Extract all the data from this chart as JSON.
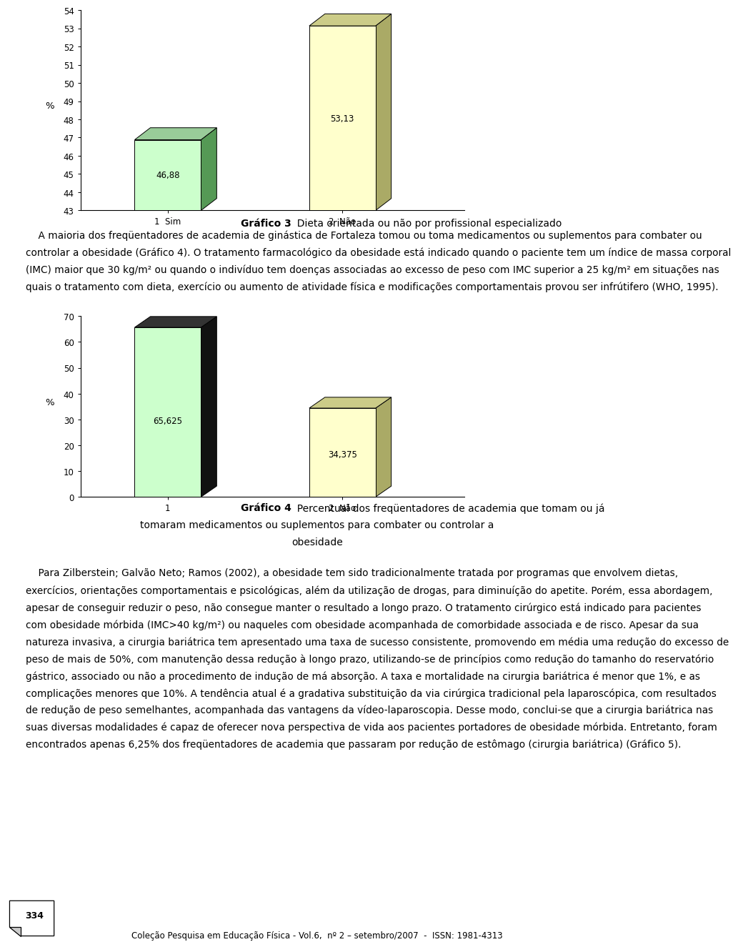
{
  "chart1": {
    "categories": [
      "1  Sim",
      "2  Não"
    ],
    "values": [
      46.88,
      53.13
    ],
    "base": 43,
    "ylim": [
      43,
      54
    ],
    "yticks": [
      43,
      44,
      45,
      46,
      47,
      48,
      49,
      50,
      51,
      52,
      53,
      54
    ],
    "ylabel": "%",
    "bar_face_colors": [
      "#ccffcc",
      "#ffffcc"
    ],
    "bar_side_colors": [
      "#559955",
      "#aaaa66"
    ],
    "bar_top_colors": [
      "#99cc99",
      "#cccc88"
    ],
    "value_labels": [
      "46,88",
      "53,13"
    ],
    "caption_bold": "Gráfico 3",
    "caption_normal": "  Dieta orientada ou não por profissional especializado"
  },
  "chart2": {
    "categories": [
      "1",
      "2  Não"
    ],
    "values": [
      65.625,
      34.375
    ],
    "base": 0,
    "ylim": [
      0,
      70
    ],
    "yticks": [
      0,
      10,
      20,
      30,
      40,
      50,
      60,
      70
    ],
    "ylabel": "%",
    "bar_face_colors": [
      "#ccffcc",
      "#ffffcc"
    ],
    "bar_side_colors": [
      "#111111",
      "#aaaa66"
    ],
    "bar_top_colors": [
      "#333333",
      "#cccc88"
    ],
    "value_labels": [
      "65,625",
      "34,375"
    ],
    "caption_bold": "Gráfico 4",
    "caption_line1": "  Percentual dos freqüentadores de academia que tomam ou já",
    "caption_line2": "tomaram medicamentos ou suplementos para combater ou controlar a",
    "caption_line3": "obesidade"
  },
  "para1_lines": [
    "    A maioria dos freqüentadores de academia de ginástica de Fortaleza tomou ou toma medicamentos ou suplementos para combater ou",
    "controlar a obesidade (Gráfico 4). O tratamento farmacológico da obesidade está indicado quando o paciente tem um índice de massa corporal",
    "(IMC) maior que 30 kg/m² ou quando o indivíduo tem doenças associadas ao excesso de peso com IMC superior a 25 kg/m² em situações nas",
    "quais o tratamento com dieta, exercício ou aumento de atividade física e modificações comportamentais provou ser infrútifero (WHO, 1995)."
  ],
  "para2_lines": [
    "    Para Zilberstein; Galvão Neto; Ramos (2002), a obesidade tem sido tradicionalmente tratada por programas que envolvem dietas,",
    "exercícios, orientações comportamentais e psicológicas, além da utilização de drogas, para diminuíção do apetite. Porém, essa abordagem,",
    "apesar de conseguir reduzir o peso, não consegue manter o resultado a longo prazo. O tratamento cirúrgico está indicado para pacientes",
    "com obesidade mórbida (IMC>40 kg/m²) ou naqueles com obesidade acompanhada de comorbidade associada e de risco. Apesar da sua",
    "natureza invasiva, a cirurgia bariátrica tem apresentado uma taxa de sucesso consistente, promovendo em média uma redução do excesso de",
    "peso de mais de 50%, com manutenção dessa redução à longo prazo, utilizando-se de princípios como redução do tamanho do reservatório",
    "gástrico, associado ou não a procedimento de indução de má absorção. A taxa e mortalidade na cirurgia bariátrica é menor que 1%, e as",
    "complicações menores que 10%. A tendência atual é a gradativa substituição da via cirúrgica tradicional pela laparoscópica, com resultados",
    "de redução de peso semelhantes, acompanhada das vantagens da vídeo-laparoscopia. Desse modo, conclui-se que a cirurgia bariátrica nas",
    "suas diversas modalidades é capaz de oferecer nova perspectiva de vida aos pacientes portadores de obesidade mórbida. Entretanto, foram",
    "encontrados apenas 6,25% dos freqüentadores de academia que passaram por redução de estômago (cirurgia bariátrica) (Gráfico 5)."
  ],
  "page_number": "334",
  "footer": "Coleção Pesquisa em Educação Física - Vol.6,  nº 2 – setembro/2007  -  ISSN: 1981-4313",
  "background_color": "#ffffff",
  "text_color": "#000000",
  "font_size_body": 9.8,
  "font_size_caption": 10.0,
  "font_size_axis": 8.5,
  "font_size_footer": 8.5
}
